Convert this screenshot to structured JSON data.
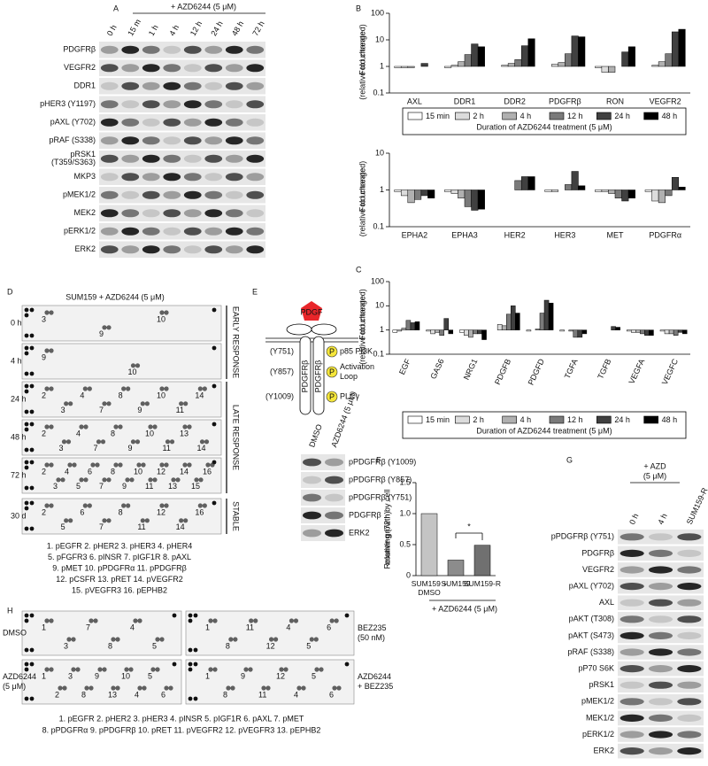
{
  "panel_labels": [
    "A",
    "B",
    "C",
    "D",
    "E",
    "F",
    "G",
    "H"
  ],
  "chart_data": [
    {
      "type": "bar",
      "log_scale": true,
      "ylabel": [
        "Fold change",
        "(relative to untreated)"
      ],
      "categories": [
        "AXL",
        "DDR1",
        "DDR2",
        "PDGFRβ",
        "RON",
        "VEGFR2"
      ],
      "ylim": [
        0.1,
        100
      ],
      "yticks": [
        0.1,
        1,
        10,
        100
      ],
      "legend_title": "Duration of AZD6244 treatment (5 μM)",
      "series": [
        {
          "name": "15 min",
          "color": "#ffffff",
          "values": [
            0.9,
            0.9,
            1.0,
            1.0,
            0.9,
            1.0
          ]
        },
        {
          "name": "2 h",
          "color": "#dcdcdc",
          "values": [
            0.9,
            1.1,
            1.1,
            1.2,
            0.6,
            1.1
          ]
        },
        {
          "name": "4 h",
          "color": "#b0b0b0",
          "values": [
            0.9,
            1.5,
            1.3,
            1.4,
            0.6,
            1.5
          ]
        },
        {
          "name": "12 h",
          "color": "#7a7a7a",
          "values": [
            1.0,
            2.8,
            1.8,
            3,
            1.0,
            3
          ]
        },
        {
          "name": "24 h",
          "color": "#404040",
          "values": [
            1.3,
            7,
            6,
            14,
            3.5,
            20
          ]
        },
        {
          "name": "48 h",
          "color": "#000000",
          "values": [
            1.0,
            5.5,
            11,
            13,
            5.5,
            25
          ]
        }
      ]
    },
    {
      "type": "bar",
      "log_scale": true,
      "ylabel": [
        "Fold change",
        "(relative to untreated)"
      ],
      "categories": [
        "EPHA2",
        "EPHA3",
        "HER2",
        "HER3",
        "MET",
        "PDGFRα"
      ],
      "ylim": [
        0.1,
        10
      ],
      "yticks": [
        0.1,
        1,
        10
      ],
      "series": [
        {
          "color": "#ffffff",
          "values": [
            0.9,
            0.9,
            1.0,
            0.9,
            0.9,
            0.9
          ]
        },
        {
          "color": "#dcdcdc",
          "values": [
            0.7,
            0.8,
            1.0,
            0.9,
            0.9,
            0.5
          ]
        },
        {
          "color": "#b0b0b0",
          "values": [
            0.45,
            0.6,
            1.0,
            1.0,
            0.8,
            0.45
          ]
        },
        {
          "color": "#7a7a7a",
          "values": [
            0.55,
            0.35,
            1.8,
            1.4,
            0.6,
            0.7
          ]
        },
        {
          "color": "#404040",
          "values": [
            0.7,
            0.28,
            2.3,
            3.2,
            0.5,
            2.2
          ]
        },
        {
          "color": "#000000",
          "values": [
            0.6,
            0.3,
            2.3,
            1.3,
            0.6,
            1.2
          ]
        }
      ]
    },
    {
      "type": "bar",
      "log_scale": true,
      "ylabel": [
        "Fold change",
        "(relative to untreated)"
      ],
      "categories": [
        "EGF",
        "GAS6",
        "NRG1",
        "PDGFB",
        "PDGFD",
        "TGFA",
        "TGFB",
        "VEGFA",
        "VEGFC"
      ],
      "ylim": [
        0.1,
        100
      ],
      "yticks": [
        0.1,
        1,
        10,
        100
      ],
      "legend_title": "Duration of AZD6244 treatment (5 μM)",
      "series": [
        {
          "name": "15 min",
          "color": "#ffffff",
          "values": [
            0.8,
            0.9,
            0.8,
            1.0,
            0.9,
            0.9,
            1.0,
            0.9,
            0.9
          ]
        },
        {
          "name": "2 h",
          "color": "#dcdcdc",
          "values": [
            0.9,
            0.7,
            0.6,
            1.7,
            1.0,
            1.0,
            1.0,
            0.8,
            0.7
          ]
        },
        {
          "name": "4 h",
          "color": "#b0b0b0",
          "values": [
            1.2,
            0.8,
            0.5,
            1.5,
            1.1,
            0.9,
            1.0,
            0.8,
            0.7
          ]
        },
        {
          "name": "12 h",
          "color": "#7a7a7a",
          "values": [
            2.5,
            0.6,
            0.7,
            4.5,
            5,
            0.5,
            1.0,
            0.7,
            0.6
          ]
        },
        {
          "name": "24 h",
          "color": "#404040",
          "values": [
            2,
            3,
            0.7,
            10,
            17,
            0.5,
            1.4,
            0.6,
            0.8
          ]
        },
        {
          "name": "48 h",
          "color": "#000000",
          "values": [
            2.2,
            0.7,
            0.4,
            5,
            13,
            0.7,
            1.3,
            0.6,
            0.7
          ]
        }
      ]
    },
    {
      "type": "bar",
      "ylabel": [
        "Relative growth by cell",
        "counting (72 h)"
      ],
      "categories": [
        "SUM159 + DMSO",
        "SUM159",
        "SUM159-R"
      ],
      "values": [
        1.0,
        0.25,
        0.49
      ],
      "colors": [
        "#c4c4c4",
        "#8c8c8c",
        "#707070"
      ],
      "ylim": [
        0,
        1.5
      ],
      "yticks": [
        0,
        0.5,
        {
          "value": 1,
          "label": "1.0"
        },
        1.5
      ],
      "significance": "*",
      "treatment": "+ AZD6244 (5 μM)"
    }
  ],
  "panel_A": {
    "treatment": "+ AZD6244 (5 μM)",
    "lanes": [
      "0 h",
      "15 m",
      "1 h",
      "4 h",
      "12 h",
      "24 h",
      "48 h",
      "72 h"
    ],
    "rows": [
      "PDGFRβ",
      "VEGFR2",
      "DDR1",
      "pHER3 (Y1197)",
      "pAXL (Y702)",
      "pRAF (S338)",
      [
        "pRSK1",
        "(T359/S363)"
      ],
      "MKP3",
      "pMEK1/2",
      "MEK2",
      "pERK1/2",
      "ERK2"
    ]
  },
  "panel_D": {
    "title": "SUM159 + AZD6244 (5 μM)",
    "arrays": [
      {
        "time": "0 h",
        "spots": [
          "3",
          "9",
          "10"
        ]
      },
      {
        "time": "4 h",
        "spots": [
          "9",
          "10"
        ]
      },
      {
        "time": "24 h",
        "spots": [
          "2",
          "3",
          "4",
          "7",
          "8",
          "9",
          "10",
          "11",
          "14"
        ]
      },
      {
        "time": "48 h",
        "spots": [
          "2",
          "3",
          "4",
          "7",
          "8",
          "9",
          "10",
          "11",
          "13",
          "14"
        ]
      },
      {
        "time": "72 h",
        "spots": [
          "2",
          "3",
          "4",
          "5",
          "6",
          "7",
          "8",
          "9",
          "10",
          "11",
          "12",
          "13",
          "14",
          "15",
          "16"
        ]
      },
      {
        "time": "30 d",
        "spots": [
          "2",
          "5",
          "6",
          "7",
          "8",
          "11",
          "12",
          "14",
          "16"
        ]
      }
    ],
    "phases": [
      "EARLY RESPONSE",
      "LATE RESPONSE",
      "STABLE"
    ],
    "key": [
      "1. pEGFR  2. pHER2  3. pHER3  4. pHER4",
      "5. pFGFR3  6. pINSR  7. pIGF1R  8. pAXL",
      "9. pMET  10. pPDGFRα  11. pPDGFRβ",
      "12. pCSFR  13. pRET  14. pVEGFR2",
      "15. pVEGFR3  16. pEPHB2"
    ]
  },
  "panel_E": {
    "diagram": {
      "ligand": "PDGF",
      "receptor": "PDGFRβ",
      "sites": [
        "(Y751)",
        "(Y857)",
        "(Y1009)"
      ],
      "phospho": "P",
      "effectors": [
        "p85 PI3K",
        [
          "Activation",
          "Loop"
        ],
        "PLCγ"
      ]
    },
    "lanes": [
      "DMSO",
      "AZD6244 (5 μM)"
    ],
    "rows": [
      "pPDGFRβ (Y1009)",
      "pPDGFRβ (Y857)",
      "pPDGFRβ (Y751)",
      "PDGFRβ",
      "ERK2"
    ]
  },
  "panel_G": {
    "treatment": [
      "+ AZD",
      "(5 μM)"
    ],
    "lanes": [
      "0 h",
      "4 h",
      "SUM159-R"
    ],
    "rows": [
      "pPDGFRβ (Y751)",
      "PDGFRβ",
      "VEGFR2",
      "pAXL (Y702)",
      "AXL",
      "pAKT (T308)",
      "pAKT (S473)",
      "pRAF (S338)",
      "pP70 S6K",
      "pRSK1",
      "pMEK1/2",
      "MEK1/2",
      "pERK1/2",
      "ERK2"
    ]
  },
  "panel_H": {
    "arrays": [
      {
        "label": "DMSO",
        "spots": [
          "1",
          "3",
          "7",
          "8",
          "4",
          "5"
        ]
      },
      {
        "label": [
          "BEZ235",
          "(50 nM)"
        ],
        "spots": [
          "1",
          "8",
          "11",
          "12",
          "4",
          "5",
          "6"
        ]
      },
      {
        "label": [
          "AZD6244",
          "(5 μM)"
        ],
        "spots": [
          "1",
          "2",
          "3",
          "8",
          "9",
          "13",
          "10",
          "4",
          "5",
          "6"
        ]
      },
      {
        "label": [
          "AZD6244",
          "+ BEZ235"
        ],
        "spots": [
          "1",
          "8",
          "9",
          "11",
          "12",
          "4",
          "5",
          "6"
        ]
      }
    ],
    "key": [
      "1. pEGFR  2. pHER2  3. pHER3  4. pINSR  5. pIGF1R  6. pAXL  7. pMET",
      "8. pPDGFRα  9. pPDGFRβ  10. pRET  11. pVEGFR2  12. pVEGFR3  13. pEPHB2"
    ]
  }
}
